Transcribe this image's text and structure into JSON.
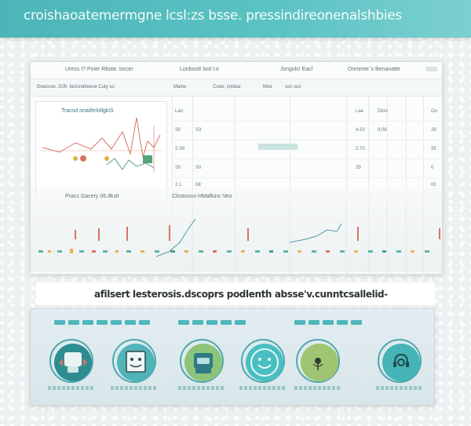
{
  "header": {
    "title": "croishaoatemermgne lcsl:zs bsse. pressindireonenalshbies"
  },
  "dashboard": {
    "columns": [
      "Uress I? Poier Rbote. Iorcer",
      "Lonboott lsot I:o",
      "Jsngolc! Eacl",
      "Onmmer`s Benanatte"
    ],
    "subheaders": [
      "Deacose. 2Ufr. Iaclsrelboese Cuty so",
      "Maine",
      "Cuoo, snidoa",
      "Moe",
      "ssn sco"
    ],
    "left_panel_title": "Tracsd onaithrlollgkiS",
    "rows": [
      {
        "a": "Lao",
        "b": "",
        "c": "Lae",
        "d": "Dtoo",
        "e": "Oo"
      },
      {
        "a": "S0",
        "b": "S3",
        "c": "4.10",
        "d": "8:08",
        "e": "28"
      },
      {
        "a": "2.S6",
        "b": "",
        "c": "2.70",
        "d": "",
        "e": "35"
      },
      {
        "a": "S0",
        "b": "S0",
        "c": "29",
        "d": "",
        "e": "0"
      },
      {
        "a": "2.1",
        "b": "08",
        "c": "",
        "d": "",
        "e": "00"
      }
    ],
    "lower_left_label": "Pracs Gacery 06.8kslt",
    "lower_mid_label": "Clnstouvo HMafkinc Veo"
  },
  "caption": {
    "text": "afilsert lesterosis.dscoprs podlenth absse'v.cunntcsallelid-"
  },
  "features": [
    {
      "icon": "chat-bubble-icon",
      "ring": "#5ab4b7",
      "fill": "#2d8d91"
    },
    {
      "icon": "document-face-icon",
      "ring": "#59aab0",
      "fill": "#50b4b8"
    },
    {
      "icon": "robot-icon",
      "ring": "#6fa37c",
      "fill": "#8cc57a"
    },
    {
      "icon": "smiley-icon",
      "ring": "#3aa5aa",
      "fill": "#49bfc2"
    },
    {
      "icon": "microphone-icon",
      "ring": "#8fa862",
      "fill": "#a0c572"
    },
    {
      "icon": "headset-icon",
      "ring": "#3aa5aa",
      "fill": "#46b4b6"
    }
  ],
  "colors": {
    "accent": "#4bb5b8",
    "chart_red": "#d87463",
    "chart_green": "#55a37a"
  }
}
